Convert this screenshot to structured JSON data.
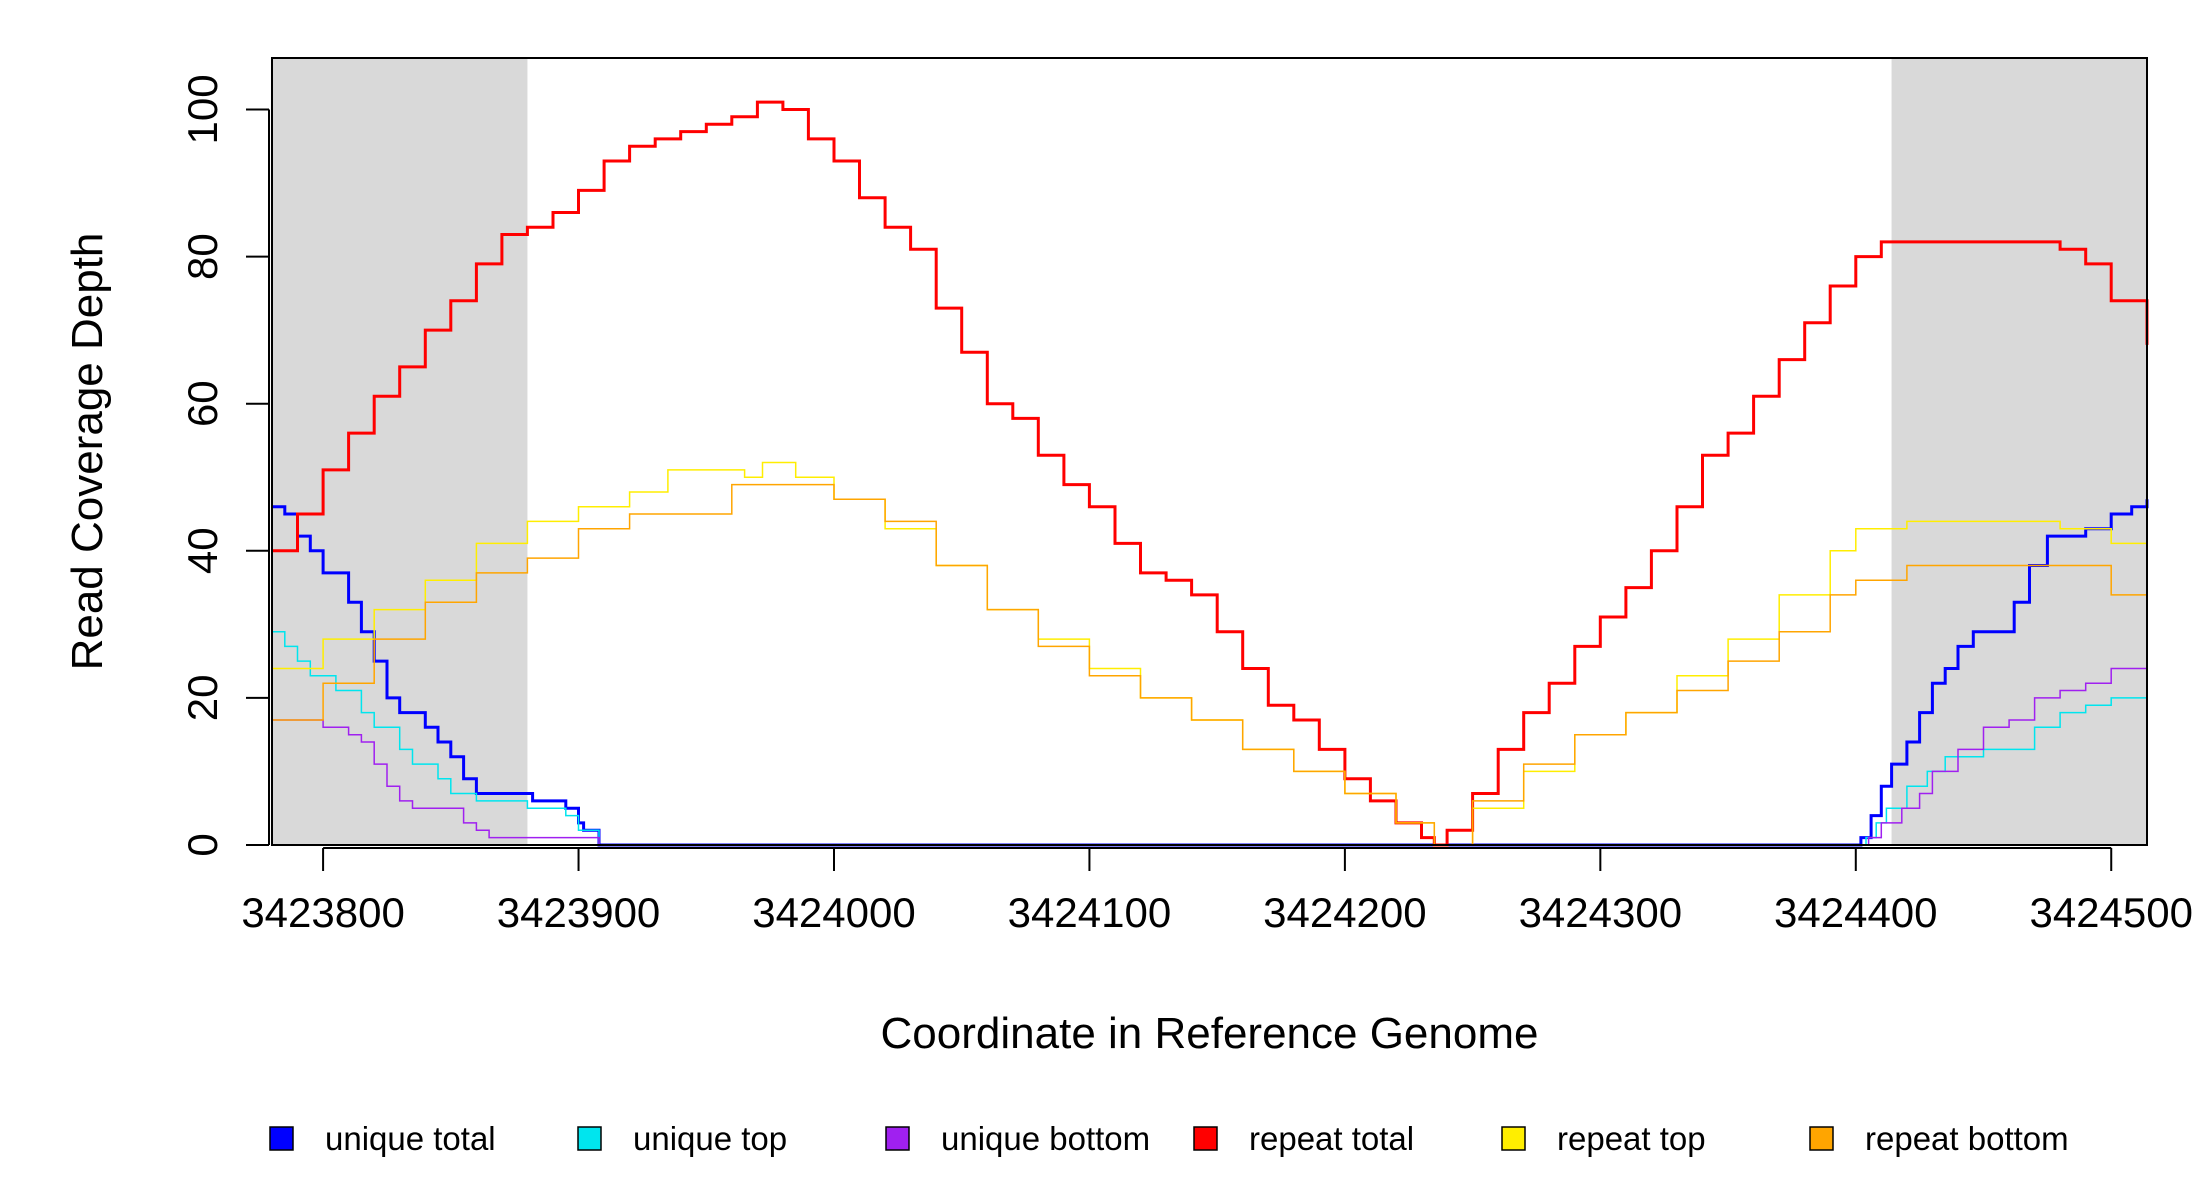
{
  "chart_data": {
    "type": "line",
    "title": "",
    "xlabel": "Coordinate in Reference Genome",
    "ylabel": "Read Coverage Depth",
    "xlim": [
      3423780,
      3424514
    ],
    "ylim": [
      0,
      107
    ],
    "x_ticks": [
      3423800,
      3423900,
      3424000,
      3424100,
      3424200,
      3424300,
      3424400,
      3424500
    ],
    "y_ticks": [
      0,
      20,
      40,
      60,
      80,
      100
    ],
    "grid": false,
    "legend_position": "bottom",
    "shaded_regions": [
      {
        "x_start": 3423780,
        "x_end": 3423880,
        "color": "#d9d9d9"
      },
      {
        "x_start": 3424414,
        "x_end": 3424514,
        "color": "#d9d9d9"
      }
    ],
    "series": [
      {
        "name": "unique total",
        "color": "#0000ff",
        "width": 3,
        "points": [
          [
            3423780,
            46
          ],
          [
            3423785,
            45
          ],
          [
            3423790,
            42
          ],
          [
            3423795,
            40
          ],
          [
            3423800,
            37
          ],
          [
            3423810,
            33
          ],
          [
            3423815,
            29
          ],
          [
            3423820,
            25
          ],
          [
            3423825,
            20
          ],
          [
            3423830,
            18
          ],
          [
            3423840,
            16
          ],
          [
            3423845,
            14
          ],
          [
            3423850,
            12
          ],
          [
            3423855,
            9
          ],
          [
            3423860,
            7
          ],
          [
            3423880,
            7
          ],
          [
            3423882,
            6
          ],
          [
            3423895,
            5
          ],
          [
            3423900,
            3
          ],
          [
            3423902,
            2
          ],
          [
            3423908,
            2
          ],
          [
            3423908,
            0
          ],
          [
            3424400,
            0
          ],
          [
            3424402,
            1
          ],
          [
            3424406,
            4
          ],
          [
            3424410,
            8
          ],
          [
            3424414,
            11
          ],
          [
            3424420,
            14
          ],
          [
            3424425,
            18
          ],
          [
            3424430,
            22
          ],
          [
            3424435,
            24
          ],
          [
            3424440,
            27
          ],
          [
            3424446,
            29
          ],
          [
            3424450,
            29
          ],
          [
            3424462,
            33
          ],
          [
            3424468,
            38
          ],
          [
            3424475,
            42
          ],
          [
            3424480,
            42
          ],
          [
            3424490,
            43
          ],
          [
            3424500,
            45
          ],
          [
            3424508,
            46
          ],
          [
            3424514,
            47
          ]
        ]
      },
      {
        "name": "unique top",
        "color": "#00e5ee",
        "width": 1.5,
        "points": [
          [
            3423780,
            29
          ],
          [
            3423785,
            27
          ],
          [
            3423790,
            25
          ],
          [
            3423795,
            23
          ],
          [
            3423805,
            21
          ],
          [
            3423815,
            18
          ],
          [
            3423820,
            16
          ],
          [
            3423830,
            13
          ],
          [
            3423835,
            11
          ],
          [
            3423845,
            9
          ],
          [
            3423850,
            7
          ],
          [
            3423860,
            6
          ],
          [
            3423880,
            5
          ],
          [
            3423895,
            4
          ],
          [
            3423900,
            2
          ],
          [
            3423908,
            1
          ],
          [
            3423908,
            0
          ],
          [
            3424400,
            0
          ],
          [
            3424404,
            1
          ],
          [
            3424408,
            3
          ],
          [
            3424412,
            5
          ],
          [
            3424420,
            8
          ],
          [
            3424428,
            10
          ],
          [
            3424435,
            12
          ],
          [
            3424450,
            13
          ],
          [
            3424460,
            13
          ],
          [
            3424470,
            16
          ],
          [
            3424480,
            18
          ],
          [
            3424490,
            19
          ],
          [
            3424500,
            20
          ],
          [
            3424514,
            21
          ]
        ]
      },
      {
        "name": "unique bottom",
        "color": "#a020f0",
        "width": 1.5,
        "points": [
          [
            3423780,
            17
          ],
          [
            3423790,
            17
          ],
          [
            3423800,
            16
          ],
          [
            3423810,
            15
          ],
          [
            3423815,
            14
          ],
          [
            3423820,
            11
          ],
          [
            3423825,
            8
          ],
          [
            3423830,
            6
          ],
          [
            3423835,
            5
          ],
          [
            3423850,
            5
          ],
          [
            3423855,
            3
          ],
          [
            3423860,
            2
          ],
          [
            3423865,
            1
          ],
          [
            3423908,
            1
          ],
          [
            3423908,
            0
          ],
          [
            3424400,
            0
          ],
          [
            3424405,
            1
          ],
          [
            3424410,
            3
          ],
          [
            3424418,
            5
          ],
          [
            3424425,
            7
          ],
          [
            3424430,
            10
          ],
          [
            3424440,
            13
          ],
          [
            3424450,
            16
          ],
          [
            3424460,
            17
          ],
          [
            3424470,
            20
          ],
          [
            3424480,
            21
          ],
          [
            3424490,
            22
          ],
          [
            3424500,
            24
          ],
          [
            3424514,
            26
          ]
        ]
      },
      {
        "name": "repeat total",
        "color": "#ff0000",
        "width": 3,
        "points": [
          [
            3423780,
            40
          ],
          [
            3423790,
            45
          ],
          [
            3423800,
            51
          ],
          [
            3423810,
            56
          ],
          [
            3423820,
            61
          ],
          [
            3423830,
            65
          ],
          [
            3423840,
            70
          ],
          [
            3423850,
            74
          ],
          [
            3423860,
            79
          ],
          [
            3423870,
            83
          ],
          [
            3423880,
            84
          ],
          [
            3423890,
            86
          ],
          [
            3423900,
            89
          ],
          [
            3423910,
            93
          ],
          [
            3423920,
            95
          ],
          [
            3423930,
            96
          ],
          [
            3423940,
            97
          ],
          [
            3423950,
            98
          ],
          [
            3423960,
            99
          ],
          [
            3423970,
            101
          ],
          [
            3423980,
            100
          ],
          [
            3423990,
            96
          ],
          [
            3424000,
            93
          ],
          [
            3424010,
            88
          ],
          [
            3424020,
            84
          ],
          [
            3424030,
            81
          ],
          [
            3424040,
            73
          ],
          [
            3424050,
            67
          ],
          [
            3424060,
            60
          ],
          [
            3424070,
            58
          ],
          [
            3424080,
            53
          ],
          [
            3424090,
            49
          ],
          [
            3424100,
            46
          ],
          [
            3424110,
            41
          ],
          [
            3424120,
            37
          ],
          [
            3424130,
            36
          ],
          [
            3424140,
            34
          ],
          [
            3424150,
            29
          ],
          [
            3424160,
            24
          ],
          [
            3424170,
            19
          ],
          [
            3424180,
            17
          ],
          [
            3424190,
            13
          ],
          [
            3424200,
            9
          ],
          [
            3424210,
            6
          ],
          [
            3424220,
            3
          ],
          [
            3424230,
            1
          ],
          [
            3424235,
            0
          ],
          [
            3424240,
            2
          ],
          [
            3424250,
            7
          ],
          [
            3424260,
            13
          ],
          [
            3424270,
            18
          ],
          [
            3424280,
            22
          ],
          [
            3424290,
            27
          ],
          [
            3424300,
            31
          ],
          [
            3424310,
            35
          ],
          [
            3424320,
            40
          ],
          [
            3424330,
            46
          ],
          [
            3424340,
            53
          ],
          [
            3424350,
            56
          ],
          [
            3424360,
            61
          ],
          [
            3424370,
            66
          ],
          [
            3424380,
            71
          ],
          [
            3424390,
            76
          ],
          [
            3424400,
            80
          ],
          [
            3424410,
            82
          ],
          [
            3424420,
            82
          ],
          [
            3424430,
            82
          ],
          [
            3424440,
            82
          ],
          [
            3424450,
            82
          ],
          [
            3424460,
            82
          ],
          [
            3424470,
            82
          ],
          [
            3424480,
            81
          ],
          [
            3424490,
            79
          ],
          [
            3424500,
            74
          ],
          [
            3424514,
            68
          ]
        ]
      },
      {
        "name": "repeat top",
        "color": "#ffee00",
        "width": 1.5,
        "points": [
          [
            3423780,
            24
          ],
          [
            3423800,
            28
          ],
          [
            3423820,
            32
          ],
          [
            3423840,
            36
          ],
          [
            3423860,
            41
          ],
          [
            3423880,
            44
          ],
          [
            3423900,
            46
          ],
          [
            3423920,
            48
          ],
          [
            3423935,
            51
          ],
          [
            3423950,
            51
          ],
          [
            3423965,
            50
          ],
          [
            3423972,
            52
          ],
          [
            3423985,
            50
          ],
          [
            3424000,
            47
          ],
          [
            3424020,
            43
          ],
          [
            3424040,
            38
          ],
          [
            3424060,
            32
          ],
          [
            3424080,
            28
          ],
          [
            3424100,
            24
          ],
          [
            3424120,
            20
          ],
          [
            3424140,
            17
          ],
          [
            3424160,
            13
          ],
          [
            3424180,
            10
          ],
          [
            3424200,
            7
          ],
          [
            3424220,
            3
          ],
          [
            3424235,
            0
          ],
          [
            3424250,
            5
          ],
          [
            3424270,
            10
          ],
          [
            3424290,
            15
          ],
          [
            3424310,
            18
          ],
          [
            3424330,
            23
          ],
          [
            3424350,
            28
          ],
          [
            3424370,
            34
          ],
          [
            3424390,
            40
          ],
          [
            3424400,
            43
          ],
          [
            3424420,
            44
          ],
          [
            3424440,
            44
          ],
          [
            3424460,
            44
          ],
          [
            3424480,
            43
          ],
          [
            3424500,
            41
          ],
          [
            3424514,
            37
          ]
        ]
      },
      {
        "name": "repeat bottom",
        "color": "#ffa500",
        "width": 1.5,
        "points": [
          [
            3423780,
            17
          ],
          [
            3423800,
            22
          ],
          [
            3423820,
            28
          ],
          [
            3423840,
            33
          ],
          [
            3423860,
            37
          ],
          [
            3423880,
            39
          ],
          [
            3423900,
            43
          ],
          [
            3423920,
            45
          ],
          [
            3423940,
            45
          ],
          [
            3423960,
            49
          ],
          [
            3423980,
            49
          ],
          [
            3424000,
            47
          ],
          [
            3424020,
            44
          ],
          [
            3424040,
            38
          ],
          [
            3424060,
            32
          ],
          [
            3424080,
            27
          ],
          [
            3424100,
            23
          ],
          [
            3424120,
            20
          ],
          [
            3424140,
            17
          ],
          [
            3424160,
            13
          ],
          [
            3424180,
            10
          ],
          [
            3424200,
            7
          ],
          [
            3424220,
            3
          ],
          [
            3424235,
            0
          ],
          [
            3424250,
            6
          ],
          [
            3424270,
            11
          ],
          [
            3424290,
            15
          ],
          [
            3424310,
            18
          ],
          [
            3424330,
            21
          ],
          [
            3424350,
            25
          ],
          [
            3424370,
            29
          ],
          [
            3424390,
            34
          ],
          [
            3424400,
            36
          ],
          [
            3424420,
            38
          ],
          [
            3424440,
            38
          ],
          [
            3424460,
            38
          ],
          [
            3424480,
            38
          ],
          [
            3424500,
            34
          ],
          [
            3424514,
            31
          ]
        ]
      }
    ]
  }
}
